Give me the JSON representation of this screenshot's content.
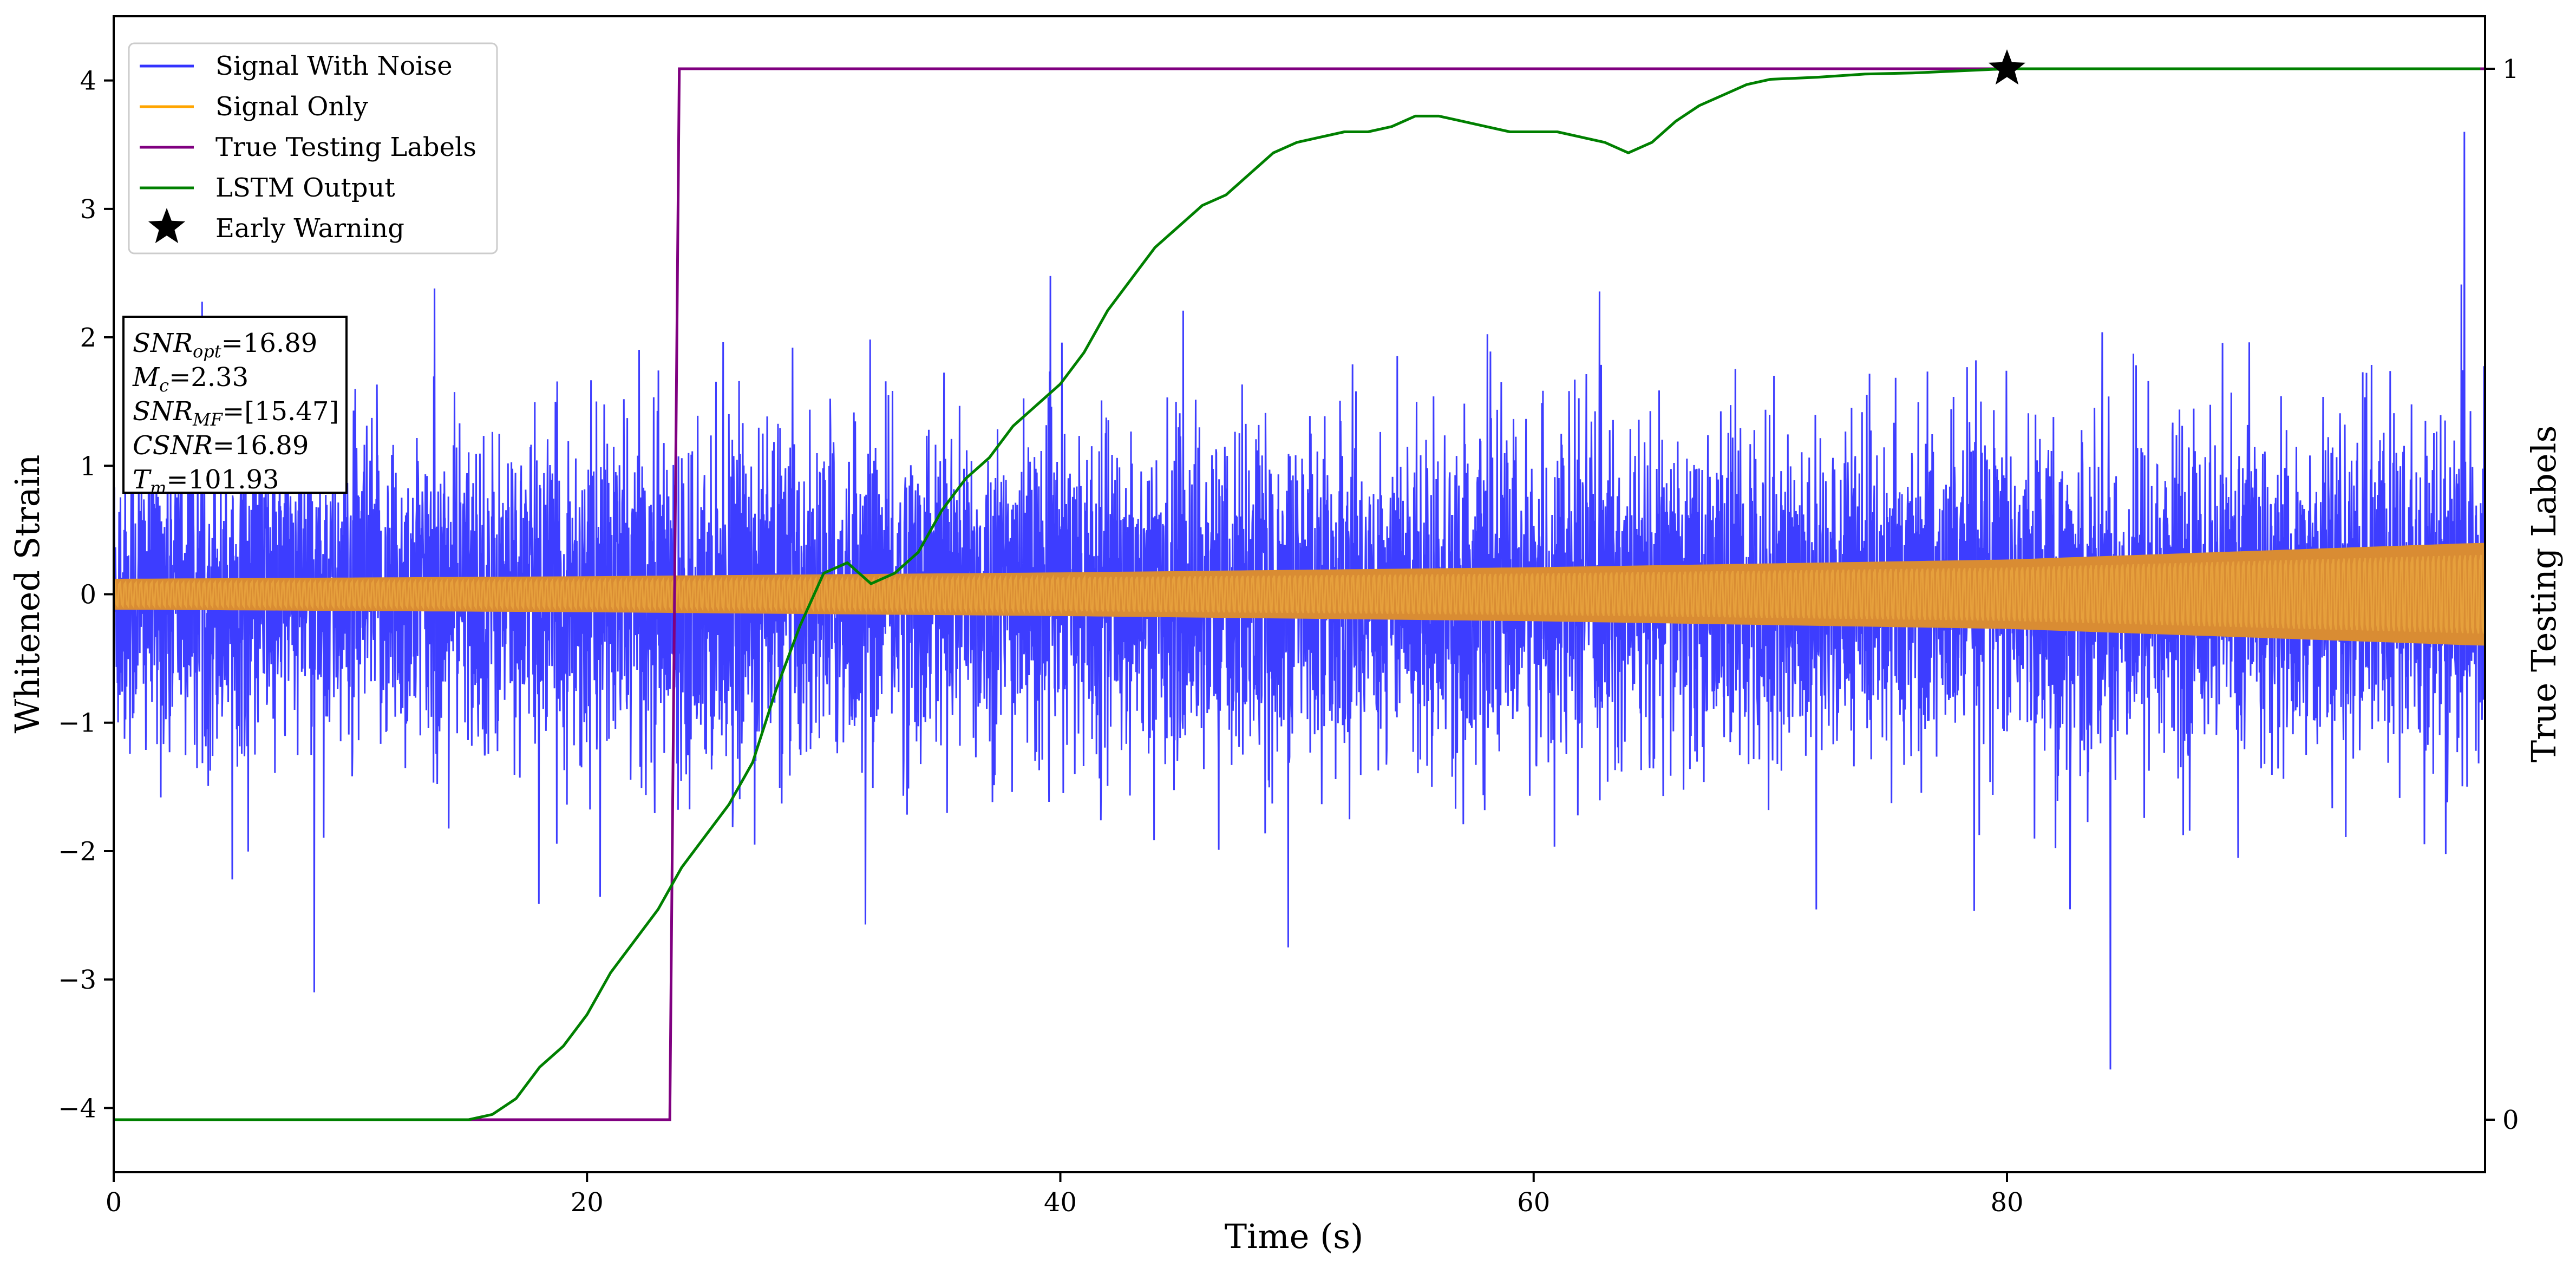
{
  "chart_data": {
    "type": "line",
    "title": "",
    "xlabel": "Time (s)",
    "ylabel": "Whitened Strain",
    "ylabel_right": "True Testing Labels",
    "xlim": [
      0,
      100.2
    ],
    "ylim": [
      -4.5,
      4.5
    ],
    "ylim_right": [
      -0.05,
      1.05
    ],
    "x_ticks": [
      0,
      20,
      40,
      60,
      80
    ],
    "y_ticks": [
      -4,
      -3,
      -2,
      -1,
      0,
      1,
      2,
      3,
      4
    ],
    "y_ticks_right": [
      0,
      1
    ],
    "grid": false,
    "legend_position": "upper-left",
    "series": [
      {
        "name": "Signal With Noise",
        "axis": "left",
        "color": "#3333ff",
        "description_values": {
          "noise_band_typical": [
            -1.0,
            1.0
          ],
          "peak_max": 3.6,
          "peak_min": -3.7
        }
      },
      {
        "name": "Signal Only",
        "axis": "left",
        "color": "#d98c33",
        "envelope": {
          "x": [
            0,
            20,
            40,
            60,
            80,
            100
          ],
          "amplitude": [
            0.12,
            0.14,
            0.17,
            0.21,
            0.27,
            0.4
          ]
        }
      },
      {
        "name": "True Testing Labels",
        "axis": "right",
        "color": "#800080",
        "x": [
          0,
          23.5,
          23.9,
          100.2
        ],
        "y": [
          0,
          0,
          1,
          1
        ]
      },
      {
        "name": "LSTM Output",
        "axis": "right",
        "color": "#008000",
        "x": [
          0,
          10,
          15,
          16,
          17,
          18,
          19,
          20,
          21,
          22,
          23,
          24,
          25,
          26,
          27,
          28,
          29,
          30,
          31,
          32,
          33,
          34,
          35,
          36,
          37,
          38,
          39,
          40,
          41,
          42,
          43,
          44,
          45,
          46,
          47,
          48,
          49,
          50,
          51,
          52,
          53,
          54,
          55,
          56,
          57,
          58,
          59,
          60,
          61,
          62,
          63,
          64,
          65,
          66,
          67,
          68,
          69,
          70,
          72,
          74,
          76,
          78,
          80,
          85,
          90,
          95,
          100
        ],
        "y": [
          0,
          0,
          0,
          0.005,
          0.02,
          0.05,
          0.07,
          0.1,
          0.14,
          0.17,
          0.2,
          0.24,
          0.27,
          0.3,
          0.34,
          0.41,
          0.47,
          0.52,
          0.53,
          0.51,
          0.52,
          0.54,
          0.58,
          0.61,
          0.63,
          0.66,
          0.68,
          0.7,
          0.73,
          0.77,
          0.8,
          0.83,
          0.85,
          0.87,
          0.88,
          0.9,
          0.92,
          0.93,
          0.935,
          0.94,
          0.94,
          0.945,
          0.955,
          0.955,
          0.95,
          0.945,
          0.94,
          0.94,
          0.94,
          0.935,
          0.93,
          0.92,
          0.93,
          0.95,
          0.965,
          0.975,
          0.985,
          0.99,
          0.992,
          0.995,
          0.996,
          0.998,
          1.0,
          1.0,
          1.0,
          1.0,
          1.0
        ]
      }
    ],
    "markers": [
      {
        "name": "Early Warning",
        "x": 80,
        "y_right": 1,
        "symbol": "star",
        "color": "#000000"
      }
    ],
    "info_box": [
      {
        "sym": "SNR",
        "sub": "opt",
        "value": "=16.89"
      },
      {
        "sym": "M",
        "sub": "c",
        "value": "=2.33"
      },
      {
        "sym": "SNR",
        "sub": "MF",
        "value": "=[15.47]"
      },
      {
        "sym": "CSNR",
        "sub": "",
        "value": "=16.89"
      },
      {
        "sym": "T",
        "sub": "m",
        "value": "=101.93"
      }
    ]
  }
}
